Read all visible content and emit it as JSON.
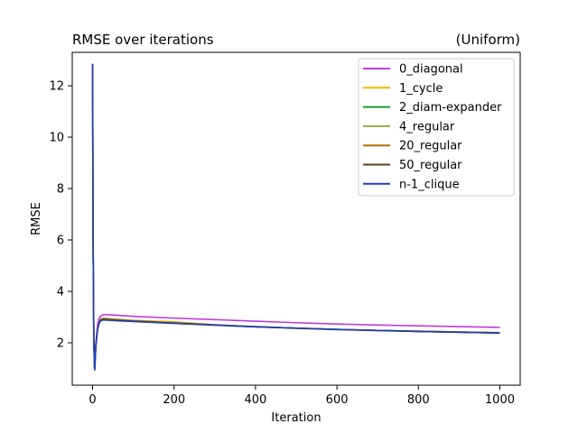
{
  "chart_data": {
    "type": "line",
    "title": "RMSE over iterations",
    "subtitle": "(Uniform)",
    "xlabel": "Iteration",
    "ylabel": "RMSE",
    "xlim": [
      -50,
      1050
    ],
    "ylim": [
      0.35,
      13.3
    ],
    "xticks": [
      0,
      200,
      400,
      600,
      800,
      1000
    ],
    "yticks": [
      2,
      4,
      6,
      8,
      10,
      12
    ],
    "grid": false,
    "legend_position": "top-right",
    "series": [
      {
        "name": "0_diagonal",
        "color": "#c03ae0",
        "x": [
          0,
          1,
          3,
          5,
          8,
          12,
          16,
          20,
          25,
          30,
          50,
          100,
          200,
          300,
          400,
          500,
          600,
          700,
          800,
          900,
          1000
        ],
        "y": [
          12.85,
          6.5,
          2.1,
          0.98,
          2.0,
          2.7,
          2.95,
          3.05,
          3.08,
          3.1,
          3.08,
          3.03,
          2.96,
          2.9,
          2.84,
          2.78,
          2.73,
          2.69,
          2.66,
          2.63,
          2.6
        ]
      },
      {
        "name": "1_cycle",
        "color": "#f5b800",
        "x": [
          0,
          1,
          3,
          5,
          8,
          12,
          16,
          20,
          25,
          30,
          50,
          100,
          200,
          300,
          400,
          500,
          600,
          700,
          800,
          900,
          1000
        ],
        "y": [
          12.85,
          6.4,
          2.0,
          0.95,
          1.9,
          2.55,
          2.8,
          2.9,
          2.93,
          2.95,
          2.92,
          2.87,
          2.82,
          2.7,
          2.63,
          2.57,
          2.52,
          2.48,
          2.45,
          2.42,
          2.4
        ]
      },
      {
        "name": "2_diam-expander",
        "color": "#1a9a2a",
        "x": [
          0,
          1,
          3,
          5,
          8,
          12,
          16,
          20,
          25,
          30,
          50,
          100,
          200,
          300,
          400,
          500,
          600,
          700,
          800,
          900,
          1000
        ],
        "y": [
          12.85,
          6.4,
          2.0,
          0.95,
          1.9,
          2.5,
          2.78,
          2.86,
          2.9,
          2.9,
          2.88,
          2.84,
          2.76,
          2.69,
          2.63,
          2.57,
          2.52,
          2.48,
          2.45,
          2.42,
          2.39
        ]
      },
      {
        "name": "4_regular",
        "color": "#98a84a",
        "x": [
          0,
          1,
          3,
          5,
          8,
          12,
          16,
          20,
          25,
          30,
          50,
          100,
          200,
          300,
          400,
          500,
          600,
          700,
          800,
          900,
          1000
        ],
        "y": [
          12.85,
          6.4,
          2.0,
          0.95,
          1.9,
          2.5,
          2.75,
          2.84,
          2.88,
          2.88,
          2.86,
          2.82,
          2.75,
          2.68,
          2.62,
          2.56,
          2.51,
          2.47,
          2.44,
          2.41,
          2.38
        ]
      },
      {
        "name": "20_regular",
        "color": "#a87400",
        "x": [
          0,
          1,
          3,
          5,
          8,
          12,
          16,
          20,
          25,
          30,
          50,
          100,
          200,
          300,
          400,
          500,
          600,
          700,
          800,
          900,
          1000
        ],
        "y": [
          12.85,
          6.4,
          2.0,
          0.95,
          1.9,
          2.55,
          2.82,
          2.92,
          2.95,
          2.95,
          2.92,
          2.86,
          2.78,
          2.7,
          2.63,
          2.57,
          2.52,
          2.48,
          2.45,
          2.42,
          2.39
        ]
      },
      {
        "name": "50_regular",
        "color": "#5a4020",
        "x": [
          0,
          1,
          3,
          5,
          8,
          12,
          16,
          20,
          25,
          30,
          50,
          100,
          200,
          300,
          400,
          500,
          600,
          700,
          800,
          900,
          1000
        ],
        "y": [
          12.85,
          6.4,
          2.0,
          0.95,
          1.9,
          2.5,
          2.78,
          2.87,
          2.9,
          2.9,
          2.88,
          2.84,
          2.76,
          2.69,
          2.62,
          2.57,
          2.52,
          2.48,
          2.44,
          2.41,
          2.38
        ]
      },
      {
        "name": "n-1_clique",
        "color": "#1f3fbf",
        "x": [
          0,
          1,
          3,
          5,
          8,
          12,
          16,
          20,
          25,
          30,
          50,
          100,
          200,
          300,
          400,
          500,
          600,
          700,
          800,
          900,
          1000
        ],
        "y": [
          12.85,
          6.4,
          2.0,
          0.95,
          1.9,
          2.5,
          2.76,
          2.86,
          2.89,
          2.89,
          2.87,
          2.83,
          2.76,
          2.69,
          2.62,
          2.57,
          2.52,
          2.48,
          2.44,
          2.41,
          2.38
        ]
      }
    ]
  }
}
